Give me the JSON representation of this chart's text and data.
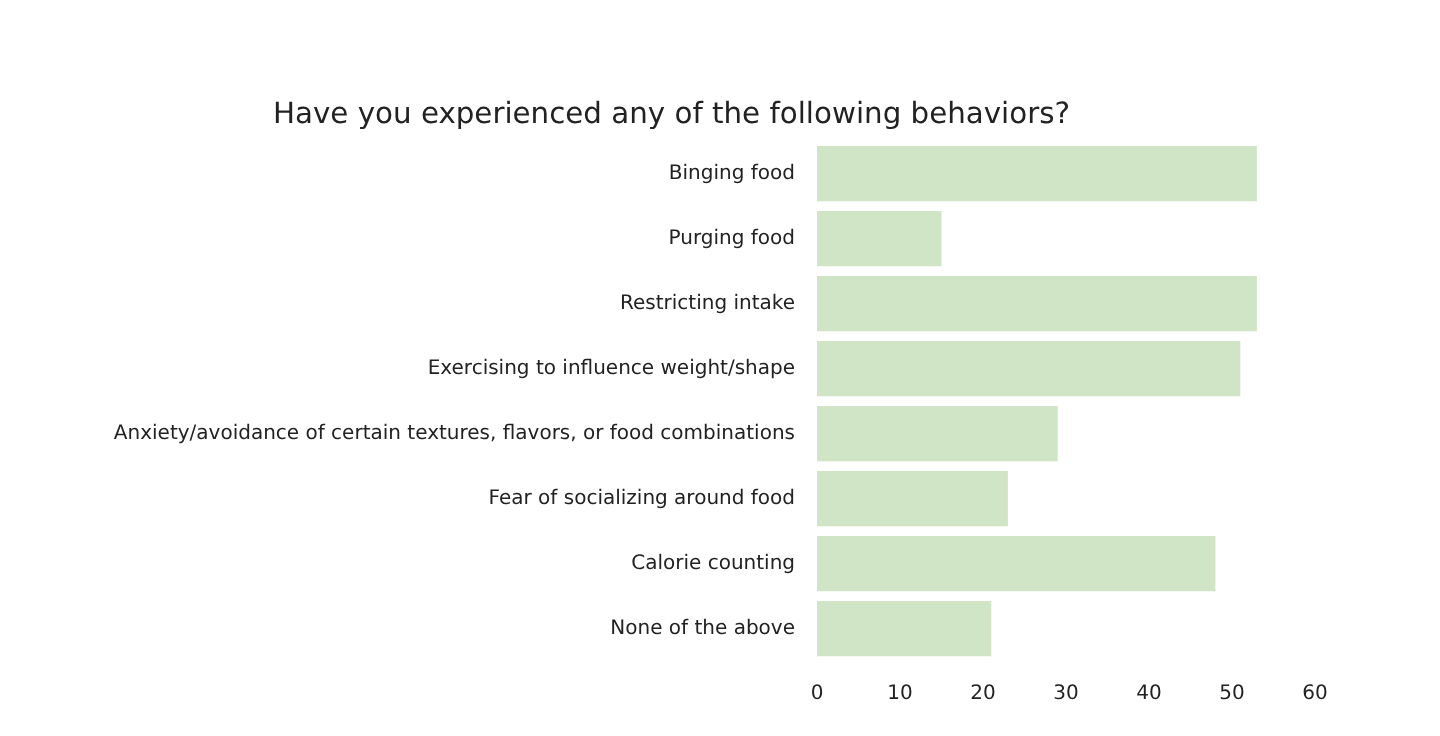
{
  "chart_data": {
    "type": "bar",
    "orientation": "horizontal",
    "title": "Have you experienced any of the following behaviors?",
    "categories": [
      "Binging food",
      "Purging food",
      "Restricting intake",
      "Exercising to influence weight/shape",
      "Anxiety/avoidance of certain textures, flavors, or food combinations",
      "Fear of socializing around food",
      "Calorie counting",
      "None of the above"
    ],
    "values": [
      53,
      15,
      53,
      51,
      29,
      23,
      48,
      21
    ],
    "color": "#d0e4c6",
    "xlim": [
      0,
      60
    ],
    "xticks": [
      0,
      10,
      20,
      30,
      40,
      50,
      60
    ],
    "grid": false
  }
}
